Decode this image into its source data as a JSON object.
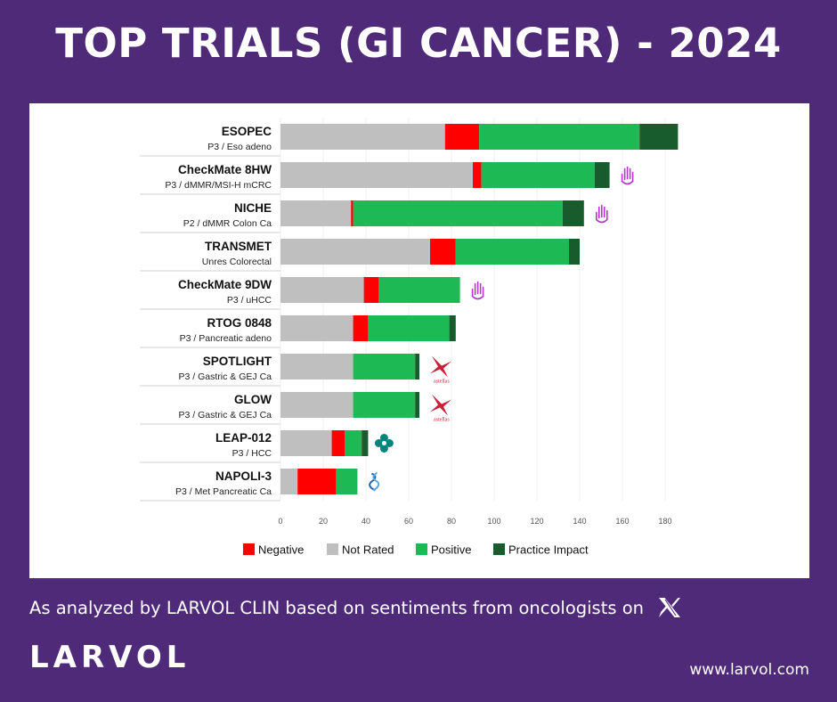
{
  "title": "TOP TRIALS (GI CANCER) - 2024",
  "subtitle": "As analyzed by LARVOL CLIN based on sentiments from oncologists on",
  "logo": "LARVOL",
  "website": "www.larvol.com",
  "icons": [
    "x-logo-icon",
    "hand-icon",
    "astellas-logo-icon",
    "merck-logo-icon",
    "ipsen-logo-icon"
  ],
  "chart_data": {
    "type": "bar",
    "orientation": "horizontal",
    "stacked": true,
    "categories": [
      {
        "name": "ESOPEC",
        "detail": "P3 / Eso adeno"
      },
      {
        "name": "CheckMate 8HW",
        "detail": "P3 / dMMR/MSI-H mCRC",
        "badge": "hand-icon"
      },
      {
        "name": "NICHE",
        "detail": "P2 / dMMR Colon Ca",
        "badge": "hand-icon"
      },
      {
        "name": "TRANSMET",
        "detail": "Unres Colorectal"
      },
      {
        "name": "CheckMate 9DW",
        "detail": "P3 / uHCC",
        "badge": "hand-icon"
      },
      {
        "name": "RTOG 0848",
        "detail": "P3 / Pancreatic adeno"
      },
      {
        "name": "SPOTLIGHT",
        "detail": "P3 / Gastric & GEJ Ca",
        "badge": "astellas-logo-icon"
      },
      {
        "name": "GLOW",
        "detail": "P3 / Gastric & GEJ Ca",
        "badge": "astellas-logo-icon"
      },
      {
        "name": "LEAP-012",
        "detail": "P3 / HCC",
        "badge": "merck-logo-icon"
      },
      {
        "name": "NAPOLI-3",
        "detail": "P3 / Met Pancreatic Ca",
        "badge": "ipsen-logo-icon"
      }
    ],
    "series": [
      {
        "name": "Not Rated",
        "color": "#bfbfbf",
        "values": [
          77,
          90,
          33,
          70,
          39,
          34,
          34,
          34,
          24,
          8
        ]
      },
      {
        "name": "Negative",
        "color": "#ff0000",
        "values": [
          16,
          4,
          1,
          12,
          7,
          7,
          0,
          0,
          6,
          18
        ]
      },
      {
        "name": "Positive",
        "color": "#1db954",
        "values": [
          75,
          53,
          98,
          53,
          38,
          38,
          29,
          29,
          8,
          10
        ]
      },
      {
        "name": "Practice Impact",
        "color": "#185c2e",
        "values": [
          18,
          7,
          10,
          5,
          0,
          3,
          2,
          2,
          3,
          0
        ]
      }
    ],
    "legend": [
      {
        "name": "Negative",
        "color": "#ff0000"
      },
      {
        "name": "Not Rated",
        "color": "#bfbfbf"
      },
      {
        "name": "Positive",
        "color": "#1db954"
      },
      {
        "name": "Practice Impact",
        "color": "#185c2e"
      }
    ],
    "xticks": [
      0,
      20,
      40,
      60,
      80,
      100,
      120,
      140,
      160,
      180
    ],
    "xlim": [
      0,
      180
    ],
    "legend_position": "bottom"
  }
}
